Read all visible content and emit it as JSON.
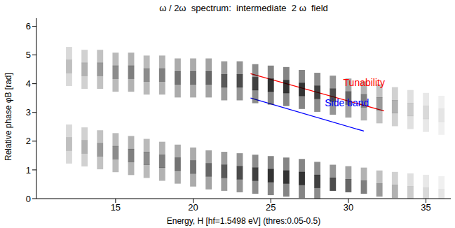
{
  "chart_data": {
    "type": "heatmap",
    "title": "ω / 2ω  spectrum:  intermediate  2 ω  field",
    "x_label": "Energy, H [hf=1.5498 eV] (thres:0.05-0.5)",
    "y_label": "Relative phase φB  [rad]",
    "xlim": [
      9.9,
      36.6
    ],
    "xticks": [
      15,
      20,
      25,
      30,
      35
    ],
    "ylim": [
      0,
      6.28
    ],
    "yticks": [
      0,
      1,
      2,
      3,
      4,
      5,
      6
    ],
    "grid": false,
    "color": "#000000",
    "cells": [
      [
        12,
        4.15,
        0.15
      ],
      [
        12,
        4.6,
        0.25
      ],
      [
        12,
        5.05,
        0.15
      ],
      [
        12,
        1.45,
        0.15
      ],
      [
        12,
        1.9,
        0.25
      ],
      [
        12,
        2.35,
        0.15
      ],
      [
        13,
        4.05,
        0.18
      ],
      [
        13,
        4.5,
        0.3
      ],
      [
        13,
        4.95,
        0.18
      ],
      [
        13,
        1.35,
        0.18
      ],
      [
        13,
        1.8,
        0.3
      ],
      [
        13,
        2.25,
        0.18
      ],
      [
        14,
        4.05,
        0.24
      ],
      [
        14,
        4.5,
        0.4
      ],
      [
        14,
        4.95,
        0.24
      ],
      [
        14,
        1.25,
        0.24
      ],
      [
        14,
        1.7,
        0.4
      ],
      [
        14,
        2.15,
        0.24
      ],
      [
        15,
        3.95,
        0.27
      ],
      [
        15,
        4.4,
        0.45
      ],
      [
        15,
        4.85,
        0.27
      ],
      [
        15,
        1.15,
        0.27
      ],
      [
        15,
        1.6,
        0.45
      ],
      [
        15,
        2.05,
        0.27
      ],
      [
        16,
        3.95,
        0.3
      ],
      [
        16,
        4.4,
        0.5
      ],
      [
        16,
        4.85,
        0.3
      ],
      [
        16,
        1.05,
        0.3
      ],
      [
        16,
        1.5,
        0.5
      ],
      [
        16,
        1.95,
        0.3
      ],
      [
        17,
        3.85,
        0.27
      ],
      [
        17,
        4.3,
        0.45
      ],
      [
        17,
        4.75,
        0.27
      ],
      [
        17,
        0.95,
        0.27
      ],
      [
        17,
        1.4,
        0.45
      ],
      [
        17,
        1.85,
        0.27
      ],
      [
        18,
        3.85,
        0.3
      ],
      [
        18,
        4.3,
        0.5
      ],
      [
        18,
        4.75,
        0.3
      ],
      [
        18,
        0.85,
        0.3
      ],
      [
        18,
        1.3,
        0.5
      ],
      [
        18,
        1.75,
        0.3
      ],
      [
        19,
        3.75,
        0.33
      ],
      [
        19,
        4.2,
        0.55
      ],
      [
        19,
        4.65,
        0.33
      ],
      [
        19,
        0.75,
        0.33
      ],
      [
        19,
        1.2,
        0.55
      ],
      [
        19,
        1.65,
        0.33
      ],
      [
        20,
        3.75,
        0.33
      ],
      [
        20,
        4.2,
        0.55
      ],
      [
        20,
        4.65,
        0.33
      ],
      [
        20,
        0.65,
        0.33
      ],
      [
        20,
        1.1,
        0.55
      ],
      [
        20,
        1.55,
        0.33
      ],
      [
        21,
        3.75,
        0.36
      ],
      [
        21,
        4.2,
        0.6
      ],
      [
        21,
        4.65,
        0.36
      ],
      [
        21,
        0.55,
        0.36
      ],
      [
        21,
        1.0,
        0.6
      ],
      [
        21,
        1.45,
        0.36
      ],
      [
        22,
        3.65,
        0.39
      ],
      [
        22,
        4.1,
        0.65
      ],
      [
        22,
        4.55,
        0.39
      ],
      [
        22,
        0.5,
        0.39
      ],
      [
        22,
        0.95,
        0.65
      ],
      [
        22,
        1.4,
        0.39
      ],
      [
        23,
        3.65,
        0.42
      ],
      [
        23,
        4.1,
        0.7
      ],
      [
        23,
        4.55,
        0.42
      ],
      [
        23,
        0.45,
        0.42
      ],
      [
        23,
        0.9,
        0.7
      ],
      [
        23,
        1.35,
        0.42
      ],
      [
        24,
        3.55,
        0.45
      ],
      [
        24,
        4.0,
        0.75
      ],
      [
        24,
        4.45,
        0.45
      ],
      [
        24,
        0.4,
        0.45
      ],
      [
        24,
        0.85,
        0.75
      ],
      [
        24,
        1.3,
        0.45
      ],
      [
        25,
        3.5,
        0.48
      ],
      [
        25,
        3.95,
        0.8
      ],
      [
        25,
        4.4,
        0.48
      ],
      [
        25,
        0.35,
        0.48
      ],
      [
        25,
        0.8,
        0.8
      ],
      [
        25,
        1.25,
        0.48
      ],
      [
        26,
        3.45,
        0.48
      ],
      [
        26,
        3.9,
        0.8
      ],
      [
        26,
        4.35,
        0.48
      ],
      [
        26,
        0.3,
        0.48
      ],
      [
        26,
        0.75,
        0.8
      ],
      [
        26,
        1.2,
        0.48
      ],
      [
        27,
        3.35,
        0.48
      ],
      [
        27,
        3.8,
        0.8
      ],
      [
        27,
        4.25,
        0.48
      ],
      [
        27,
        0.25,
        0.48
      ],
      [
        27,
        0.7,
        0.8
      ],
      [
        27,
        1.15,
        0.48
      ],
      [
        28,
        3.25,
        0.45
      ],
      [
        28,
        3.7,
        0.75
      ],
      [
        28,
        4.15,
        0.45
      ],
      [
        28,
        0.15,
        0.45
      ],
      [
        28,
        0.6,
        0.75
      ],
      [
        28,
        1.05,
        0.45
      ],
      [
        29,
        3.15,
        0.42
      ],
      [
        29,
        3.6,
        0.7
      ],
      [
        29,
        4.05,
        0.42
      ],
      [
        29,
        0.5,
        0.7
      ],
      [
        29,
        0.95,
        0.42
      ],
      [
        30,
        3.05,
        0.36
      ],
      [
        30,
        3.5,
        0.6
      ],
      [
        30,
        3.95,
        0.36
      ],
      [
        30,
        0.45,
        0.6
      ],
      [
        30,
        0.9,
        0.36
      ],
      [
        31,
        2.95,
        0.3
      ],
      [
        31,
        3.4,
        0.5
      ],
      [
        31,
        3.85,
        0.3
      ],
      [
        31,
        0.4,
        0.5
      ],
      [
        31,
        0.85,
        0.3
      ],
      [
        32,
        2.85,
        0.24
      ],
      [
        32,
        3.3,
        0.4
      ],
      [
        32,
        3.75,
        0.24
      ],
      [
        32,
        0.3,
        0.4
      ],
      [
        32,
        0.75,
        0.24
      ],
      [
        33,
        2.75,
        0.18
      ],
      [
        33,
        3.2,
        0.3
      ],
      [
        33,
        3.65,
        0.18
      ],
      [
        33,
        0.25,
        0.3
      ],
      [
        33,
        0.7,
        0.18
      ],
      [
        34,
        2.65,
        0.12
      ],
      [
        34,
        3.1,
        0.2
      ],
      [
        34,
        3.55,
        0.12
      ],
      [
        34,
        0.2,
        0.2
      ],
      [
        34,
        0.65,
        0.12
      ],
      [
        35,
        2.55,
        0.09
      ],
      [
        35,
        3.0,
        0.15
      ],
      [
        35,
        3.45,
        0.09
      ],
      [
        35,
        0.15,
        0.15
      ],
      [
        35,
        0.6,
        0.09
      ],
      [
        36,
        2.45,
        0.06
      ],
      [
        36,
        2.9,
        0.1
      ],
      [
        36,
        3.35,
        0.06
      ],
      [
        36,
        0.1,
        0.1
      ],
      [
        36,
        0.55,
        0.06
      ]
    ],
    "annotations": [
      {
        "text": "Tunability",
        "color": "#ff0000",
        "x": [
          23.7,
          32.3
        ],
        "y": [
          4.35,
          3.05
        ]
      },
      {
        "text": "Side band",
        "color": "#0000ff",
        "x": [
          23.7,
          31.0
        ],
        "y": [
          3.5,
          2.35
        ]
      }
    ]
  }
}
